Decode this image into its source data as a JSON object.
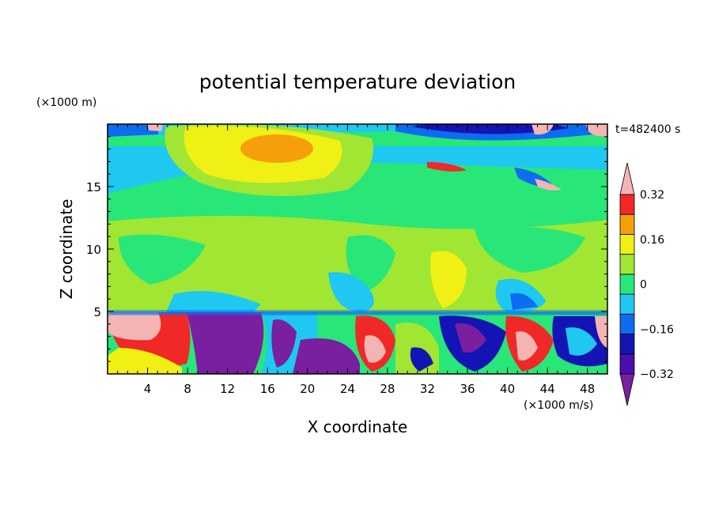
{
  "chart_data": {
    "type": "heatmap",
    "title": "potential temperature deviation",
    "xlabel": "X coordinate",
    "ylabel": "Z coordinate",
    "x_unit": "(×1000 m/s)",
    "y_unit": "(×1000 m)",
    "time_label": "t=482400 s",
    "xlim": [
      0,
      50
    ],
    "ylim": [
      0,
      20
    ],
    "x_ticks": [
      4,
      8,
      12,
      16,
      20,
      24,
      28,
      32,
      36,
      40,
      44,
      48
    ],
    "y_ticks": [
      5,
      10,
      15
    ],
    "colorbar": {
      "levels": [
        -0.4,
        -0.32,
        -0.24,
        -0.16,
        -0.08,
        0,
        0.08,
        0.16,
        0.24,
        0.32,
        0.4
      ],
      "labels": [
        "0.32",
        "0.16",
        "0",
        "−0.16",
        "−0.32"
      ],
      "label_values": [
        0.32,
        0.16,
        0,
        -0.16,
        -0.32
      ],
      "colors": [
        "#7a1fa0",
        "#4b0fb0",
        "#1414b4",
        "#0d6cf0",
        "#1ec8f0",
        "#28e678",
        "#a0e632",
        "#f0f014",
        "#f5a00a",
        "#f02828",
        "#f5b4b4"
      ]
    }
  }
}
